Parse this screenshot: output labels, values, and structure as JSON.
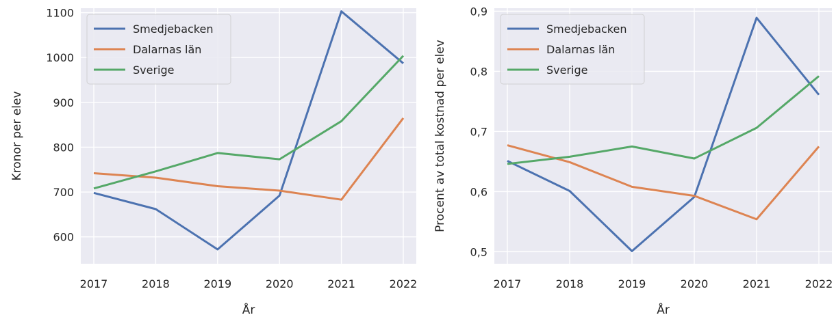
{
  "colors": {
    "background": "#eaeaf2",
    "grid": "#ffffff",
    "text": "#262626",
    "Smedjebacken": "#4c72b0",
    "Dalarnas län": "#dd8452",
    "Sverige": "#55a868"
  },
  "chart_data": [
    {
      "type": "line",
      "title": "",
      "xlabel": "År",
      "ylabel": "Kronor per elev",
      "x": [
        "2017",
        "2018",
        "2019",
        "2020",
        "2021",
        "2022"
      ],
      "y_ticks": [
        "600",
        "700",
        "800",
        "900",
        "1000",
        "1100"
      ],
      "ylim": [
        540,
        1110
      ],
      "grid": true,
      "legend_position": "top-left",
      "series": [
        {
          "name": "Smedjebacken",
          "color": "#4c72b0",
          "values": [
            698,
            662,
            572,
            692,
            1103,
            987
          ]
        },
        {
          "name": "Dalarnas län",
          "color": "#dd8452",
          "values": [
            742,
            732,
            713,
            703,
            683,
            865
          ]
        },
        {
          "name": "Sverige",
          "color": "#55a868",
          "values": [
            708,
            746,
            787,
            773,
            858,
            1004
          ]
        }
      ]
    },
    {
      "type": "line",
      "title": "",
      "xlabel": "År",
      "ylabel": "Procent av total kostnad per elev",
      "x": [
        "2017",
        "2018",
        "2019",
        "2020",
        "2021",
        "2022"
      ],
      "y_ticks": [
        "0,5",
        "0,6",
        "0,7",
        "0,8",
        "0,9"
      ],
      "ylim": [
        0.48,
        0.905
      ],
      "grid": true,
      "legend_position": "top-left",
      "series": [
        {
          "name": "Smedjebacken",
          "color": "#4c72b0",
          "values": [
            0.651,
            0.601,
            0.501,
            0.591,
            0.889,
            0.761
          ]
        },
        {
          "name": "Dalarnas län",
          "color": "#dd8452",
          "values": [
            0.677,
            0.649,
            0.608,
            0.593,
            0.554,
            0.675
          ]
        },
        {
          "name": "Sverige",
          "color": "#55a868",
          "values": [
            0.646,
            0.658,
            0.675,
            0.655,
            0.706,
            0.792
          ]
        }
      ]
    }
  ]
}
